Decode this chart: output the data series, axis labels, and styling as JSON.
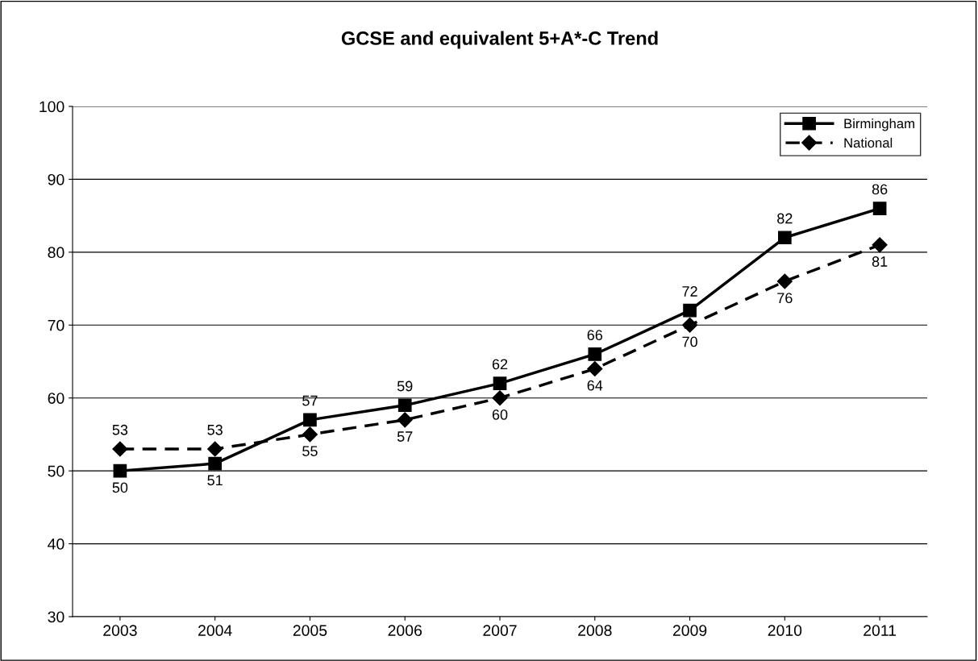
{
  "chart_data": {
    "type": "line",
    "title": "GCSE and equivalent 5+A*-C Trend",
    "categories": [
      "2003",
      "2004",
      "2005",
      "2006",
      "2007",
      "2008",
      "2009",
      "2010",
      "2011"
    ],
    "series": [
      {
        "name": "Birmingham",
        "color": "#000000",
        "marker": "square",
        "line_style": "solid",
        "values": [
          50,
          51,
          57,
          59,
          62,
          66,
          72,
          82,
          86
        ]
      },
      {
        "name": "National",
        "color": "#000000",
        "marker": "diamond",
        "line_style": "dashed",
        "values": [
          53,
          53,
          55,
          57,
          60,
          64,
          70,
          76,
          81
        ]
      }
    ],
    "ylim": [
      30,
      100
    ],
    "yticks": [
      30,
      40,
      50,
      60,
      70,
      80,
      90,
      100
    ],
    "grid": "y",
    "legend": "top right",
    "data_labels": true
  }
}
